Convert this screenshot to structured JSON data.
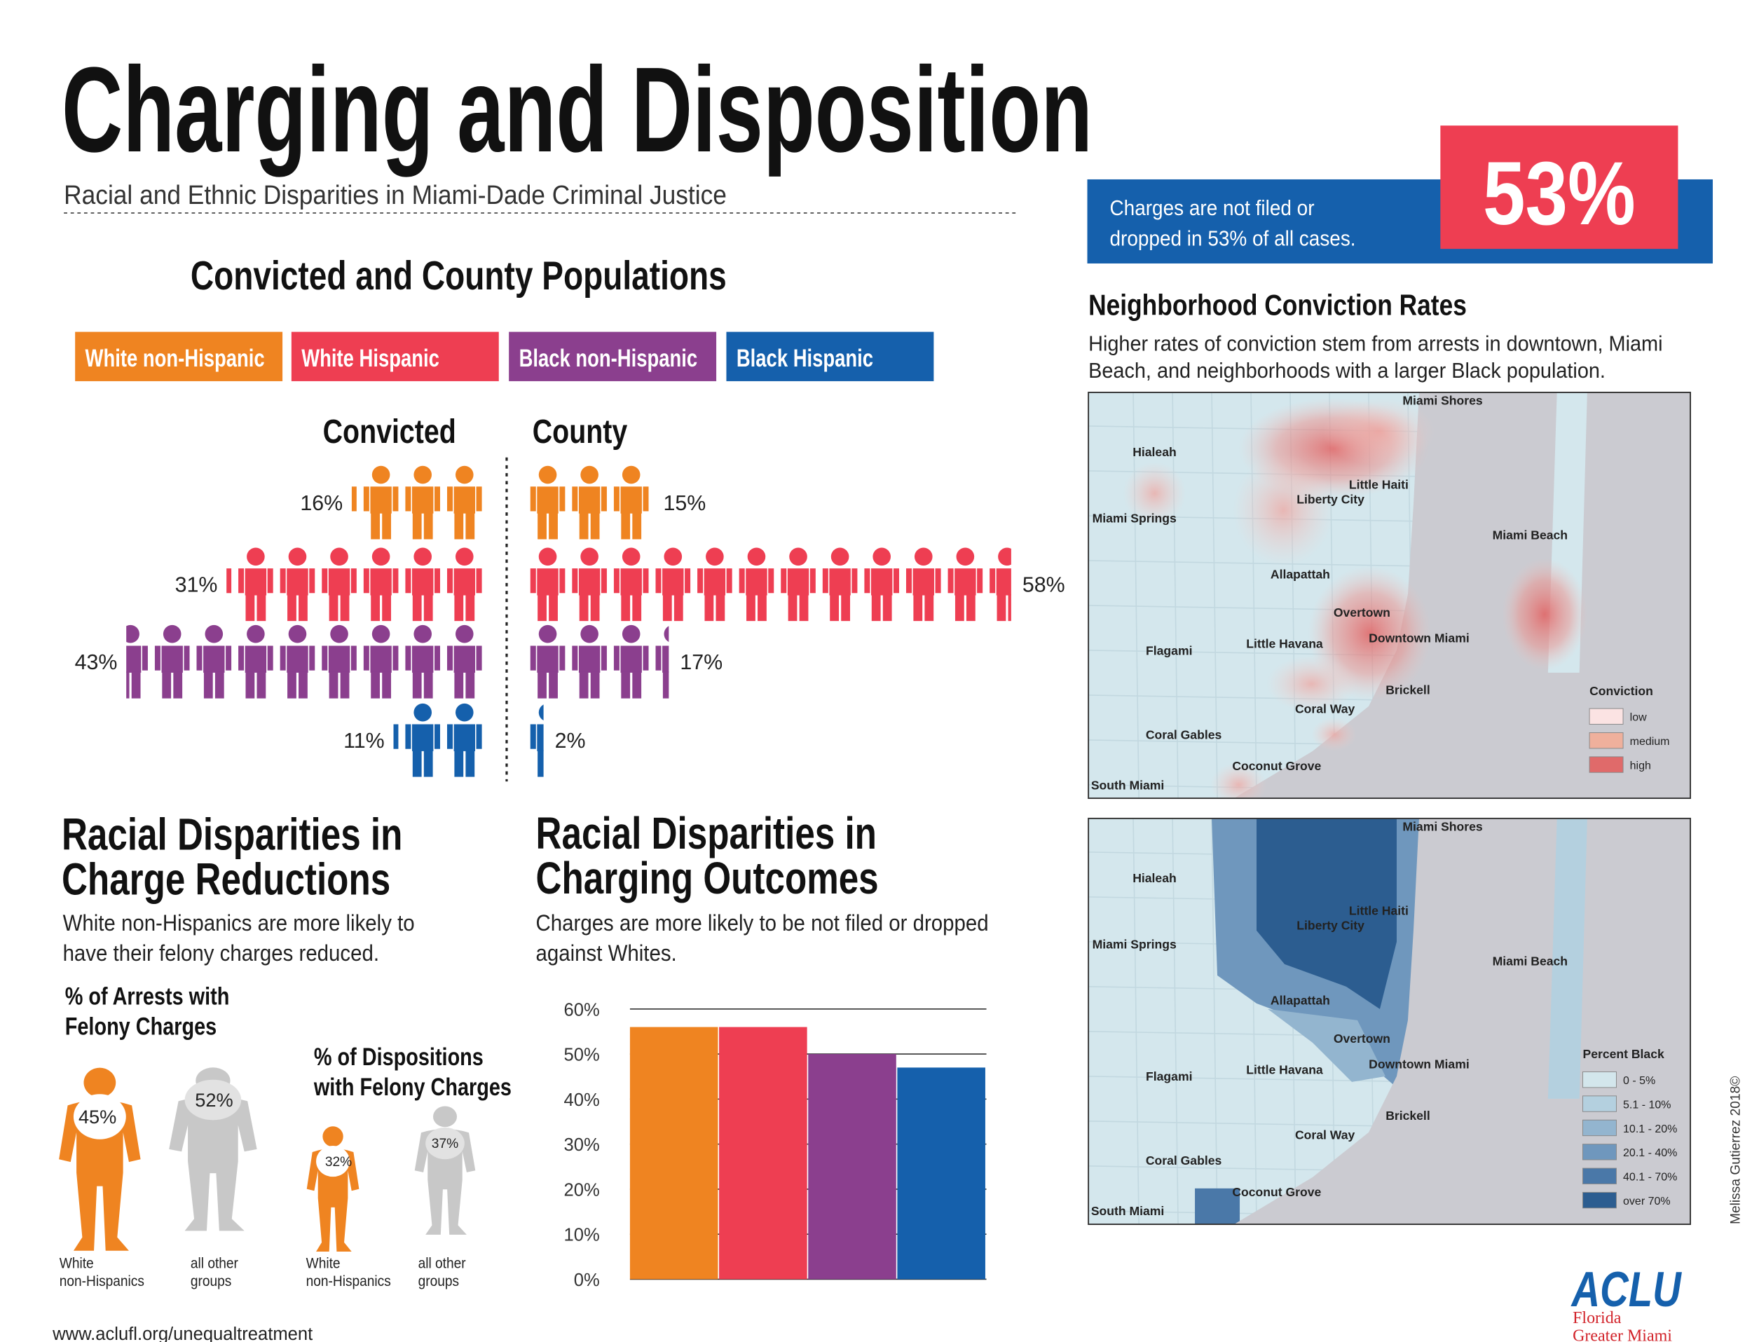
{
  "header": {
    "title": "Charging and Disposition",
    "subtitle": "Racial and Ethnic Disparities in Miami-Dade Criminal Justice"
  },
  "stat": {
    "text_lines": [
      "Charges are not filed or",
      "dropped in 53% of all cases."
    ],
    "value": 53,
    "label": "53%"
  },
  "populations": {
    "title": "Convicted and County Populations",
    "groups": [
      {
        "name": "White non-Hispanic",
        "color": "#ef8421"
      },
      {
        "name": "White Hispanic",
        "color": "#ee3e52"
      },
      {
        "name": "Black non-Hispanic",
        "color": "#8b3f8e"
      },
      {
        "name": "Black Hispanic",
        "color": "#1560ac"
      }
    ],
    "columns": [
      "Convicted",
      "County"
    ],
    "convicted": {
      "values": [
        16,
        31,
        43,
        11
      ],
      "value_labels": [
        "16%",
        "31%",
        "43%",
        "11%"
      ]
    },
    "county": {
      "values": [
        15,
        58,
        17,
        2
      ],
      "value_labels": [
        "15%",
        "58%",
        "17%",
        "2%"
      ]
    }
  },
  "reductions": {
    "title_lines": [
      "Racial Disparities in",
      "Charge Reductions"
    ],
    "description_lines": [
      "White non-Hispanics are more likely to",
      "have their felony charges reduced."
    ],
    "panels": [
      {
        "title_lines": [
          "% of Arrests with",
          "Felony Charges"
        ],
        "values": [
          45,
          52
        ],
        "value_labels": [
          "45%",
          "52%"
        ],
        "groups": [
          [
            "White",
            "non-Hispanics"
          ],
          [
            "all other",
            "groups"
          ]
        ]
      },
      {
        "title_lines": [
          "% of Dispositions",
          "with Felony Charges"
        ],
        "values": [
          32,
          37
        ],
        "value_labels": [
          "32%",
          "37%"
        ],
        "groups": [
          [
            "White",
            "non-Hispanics"
          ],
          [
            "all other",
            "groups"
          ]
        ]
      }
    ]
  },
  "outcomes": {
    "title_lines": [
      "Racial Disparities in",
      "Charging  Outcomes"
    ],
    "description_lines": [
      "Charges are more likely to be not filed or dropped",
      "against Whites."
    ]
  },
  "chart_data": {
    "type": "bar",
    "values": [
      56,
      56,
      50,
      47
    ],
    "colors": [
      "#ef8421",
      "#ee3e52",
      "#8b3f8e",
      "#1560ac"
    ],
    "ylim": [
      0,
      60
    ],
    "yticks": [
      {
        "value": 0,
        "label": "0%"
      },
      {
        "value": 10,
        "label": "10%"
      },
      {
        "value": 20,
        "label": "20%"
      },
      {
        "value": 30,
        "label": "30%"
      },
      {
        "value": 40,
        "label": "40%"
      },
      {
        "value": 50,
        "label": "50%"
      },
      {
        "value": 60,
        "label": "60%"
      }
    ],
    "grid": true
  },
  "neighborhood": {
    "title": "Neighborhood Conviction Rates",
    "description_lines": [
      "Higher rates of conviction stem from arrests in downtown, Miami",
      "Beach, and neighborhoods with a larger Black population."
    ],
    "places": [
      "Miami Shores",
      "Hialeah",
      "Little Haiti",
      "Liberty City",
      "Miami Springs",
      "Miami Beach",
      "Allapattah",
      "Overtown",
      "Downtown Miami",
      "Little Havana",
      "Flagami",
      "Brickell",
      "Coral Way",
      "Coral Gables",
      "Coconut Grove",
      "South Miami"
    ],
    "maps": [
      {
        "legend_title": "Conviction",
        "legend": [
          "low",
          "medium",
          "high"
        ]
      },
      {
        "legend_title": "Percent Black",
        "legend": [
          "0 - 5%",
          "5.1 - 10%",
          "10.1 - 20%",
          "20.1 - 40%",
          "40.1 - 70%",
          "over 70%"
        ]
      }
    ]
  },
  "credit": "Melissa Gutierrez 2018©",
  "footer": "www.aclufl.org/unequaltreatment",
  "logo": {
    "name": "ACLU",
    "lines": [
      "Florida",
      "Greater Miami"
    ]
  }
}
